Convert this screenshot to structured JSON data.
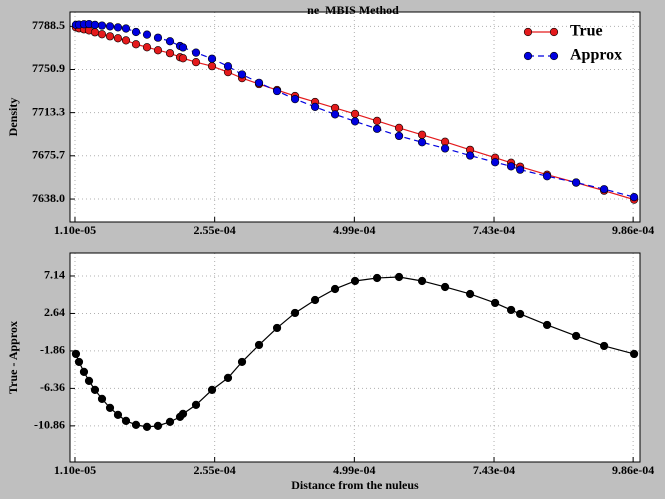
{
  "chart_data": [
    {
      "type": "line",
      "title": "ne  MBIS Method",
      "ylabel": "Density",
      "x": [
        1.27e-05,
        1.8e-05,
        2.67e-05,
        3.55e-05,
        4.59e-05,
        5.82e-05,
        7.22e-05,
        8.61e-05,
        0.0001001,
        0.0001176,
        0.0001368,
        0.000156,
        0.000177,
        0.0001945,
        0.0001997,
        0.0002224,
        0.0002504,
        0.0002783,
        0.0003028,
        0.0003325,
        0.000364,
        0.0003954,
        0.0004304,
        0.0004653,
        0.0005002,
        0.0005387,
        0.0005771,
        0.0006173,
        0.0006575,
        0.0007012,
        0.0007449,
        0.0007728,
        0.0007886,
        0.0008357,
        0.0008864,
        0.0009353,
        0.0009877
      ],
      "series": [
        {
          "name": "True",
          "color": "#e41a1c",
          "linestyle": "solid",
          "values": [
            7787.6,
            7786.8,
            7785.9,
            7785.0,
            7783.3,
            7781.6,
            7779.8,
            7778.1,
            7776.3,
            7772.9,
            7770.3,
            7767.7,
            7765.1,
            7761.6,
            7760.7,
            7757.3,
            7753.8,
            7748.6,
            7743.4,
            7738.2,
            7733.0,
            7727.8,
            7722.6,
            7717.4,
            7712.2,
            7706.1,
            7700.0,
            7694.0,
            7687.9,
            7680.9,
            7674.0,
            7669.6,
            7666.2,
            7659.2,
            7652.3,
            7645.3,
            7637.5
          ]
        },
        {
          "name": "Approx",
          "color": "#0000e0",
          "linestyle": "dashed",
          "values": [
            7789.8,
            7790.0,
            7790.3,
            7790.5,
            7789.8,
            7789.2,
            7788.5,
            7787.6,
            7786.6,
            7783.6,
            7781.3,
            7778.6,
            7775.5,
            7771.4,
            7770.1,
            7765.6,
            7760.3,
            7753.7,
            7746.6,
            7739.3,
            7732.1,
            7725.1,
            7718.3,
            7711.8,
            7705.7,
            7699.2,
            7693.0,
            7687.5,
            7682.1,
            7675.9,
            7670.1,
            7666.5,
            7663.6,
            7657.9,
            7652.4,
            7646.6,
            7639.7
          ]
        }
      ],
      "xlim": [
        2.3e-06,
        0.000998
      ],
      "xticks": [
        {
          "value": 1.1e-05,
          "label": "1.10e-05"
        },
        {
          "value": 0.000255,
          "label": "2.55e-04"
        },
        {
          "value": 0.000499,
          "label": "4.99e-04"
        },
        {
          "value": 0.000743,
          "label": "7.43e-04"
        },
        {
          "value": 0.000986,
          "label": "9.86e-04"
        }
      ],
      "ylim": [
        7618,
        7801
      ],
      "yticks": [
        {
          "value": 7638.0,
          "label": "7638.0"
        },
        7675.7,
        7713.3,
        7750.9,
        7788.5
      ],
      "grid": true,
      "legend": "upper right"
    },
    {
      "type": "line",
      "xlabel": "Distance from the nuleus",
      "ylabel": "True - Approx",
      "x": [
        1.27e-05,
        1.8e-05,
        2.67e-05,
        3.55e-05,
        4.59e-05,
        5.82e-05,
        7.22e-05,
        8.61e-05,
        0.0001001,
        0.0001176,
        0.0001368,
        0.000156,
        0.000177,
        0.0001945,
        0.0001997,
        0.0002224,
        0.0002504,
        0.0002783,
        0.0003028,
        0.0003325,
        0.000364,
        0.0003954,
        0.0004304,
        0.0004653,
        0.0005002,
        0.0005387,
        0.0005771,
        0.0006173,
        0.0006575,
        0.0007012,
        0.0007449,
        0.0007728,
        0.0007886,
        0.0008357,
        0.0008864,
        0.0009353,
        0.0009877
      ],
      "series": [
        {
          "color": "#000000",
          "linestyle": "solid",
          "values": [
            -2.22,
            -3.18,
            -4.38,
            -5.46,
            -6.54,
            -7.62,
            -8.7,
            -9.54,
            -10.26,
            -10.74,
            -10.98,
            -10.86,
            -10.38,
            -9.78,
            -9.42,
            -8.34,
            -6.54,
            -5.1,
            -3.18,
            -1.14,
            0.9,
            2.7,
            4.26,
            5.58,
            6.54,
            6.9,
            7.02,
            6.54,
            5.82,
            4.98,
            3.9,
            3.06,
            2.58,
            1.26,
            -0.06,
            -1.26,
            -2.22
          ]
        }
      ],
      "xlim": [
        2.3e-06,
        0.000998
      ],
      "xticks": [
        {
          "value": 1.1e-05,
          "label": "1.10e-05"
        },
        {
          "value": 0.000255,
          "label": "2.55e-04"
        },
        {
          "value": 0.000499,
          "label": "4.99e-04"
        },
        {
          "value": 0.000743,
          "label": "7.43e-04"
        },
        {
          "value": 0.000986,
          "label": "9.86e-04"
        }
      ],
      "ylim": [
        -15.2,
        9.9
      ],
      "yticks": [
        -10.86,
        -6.36,
        -1.86,
        2.64,
        7.14
      ],
      "grid": true
    }
  ]
}
